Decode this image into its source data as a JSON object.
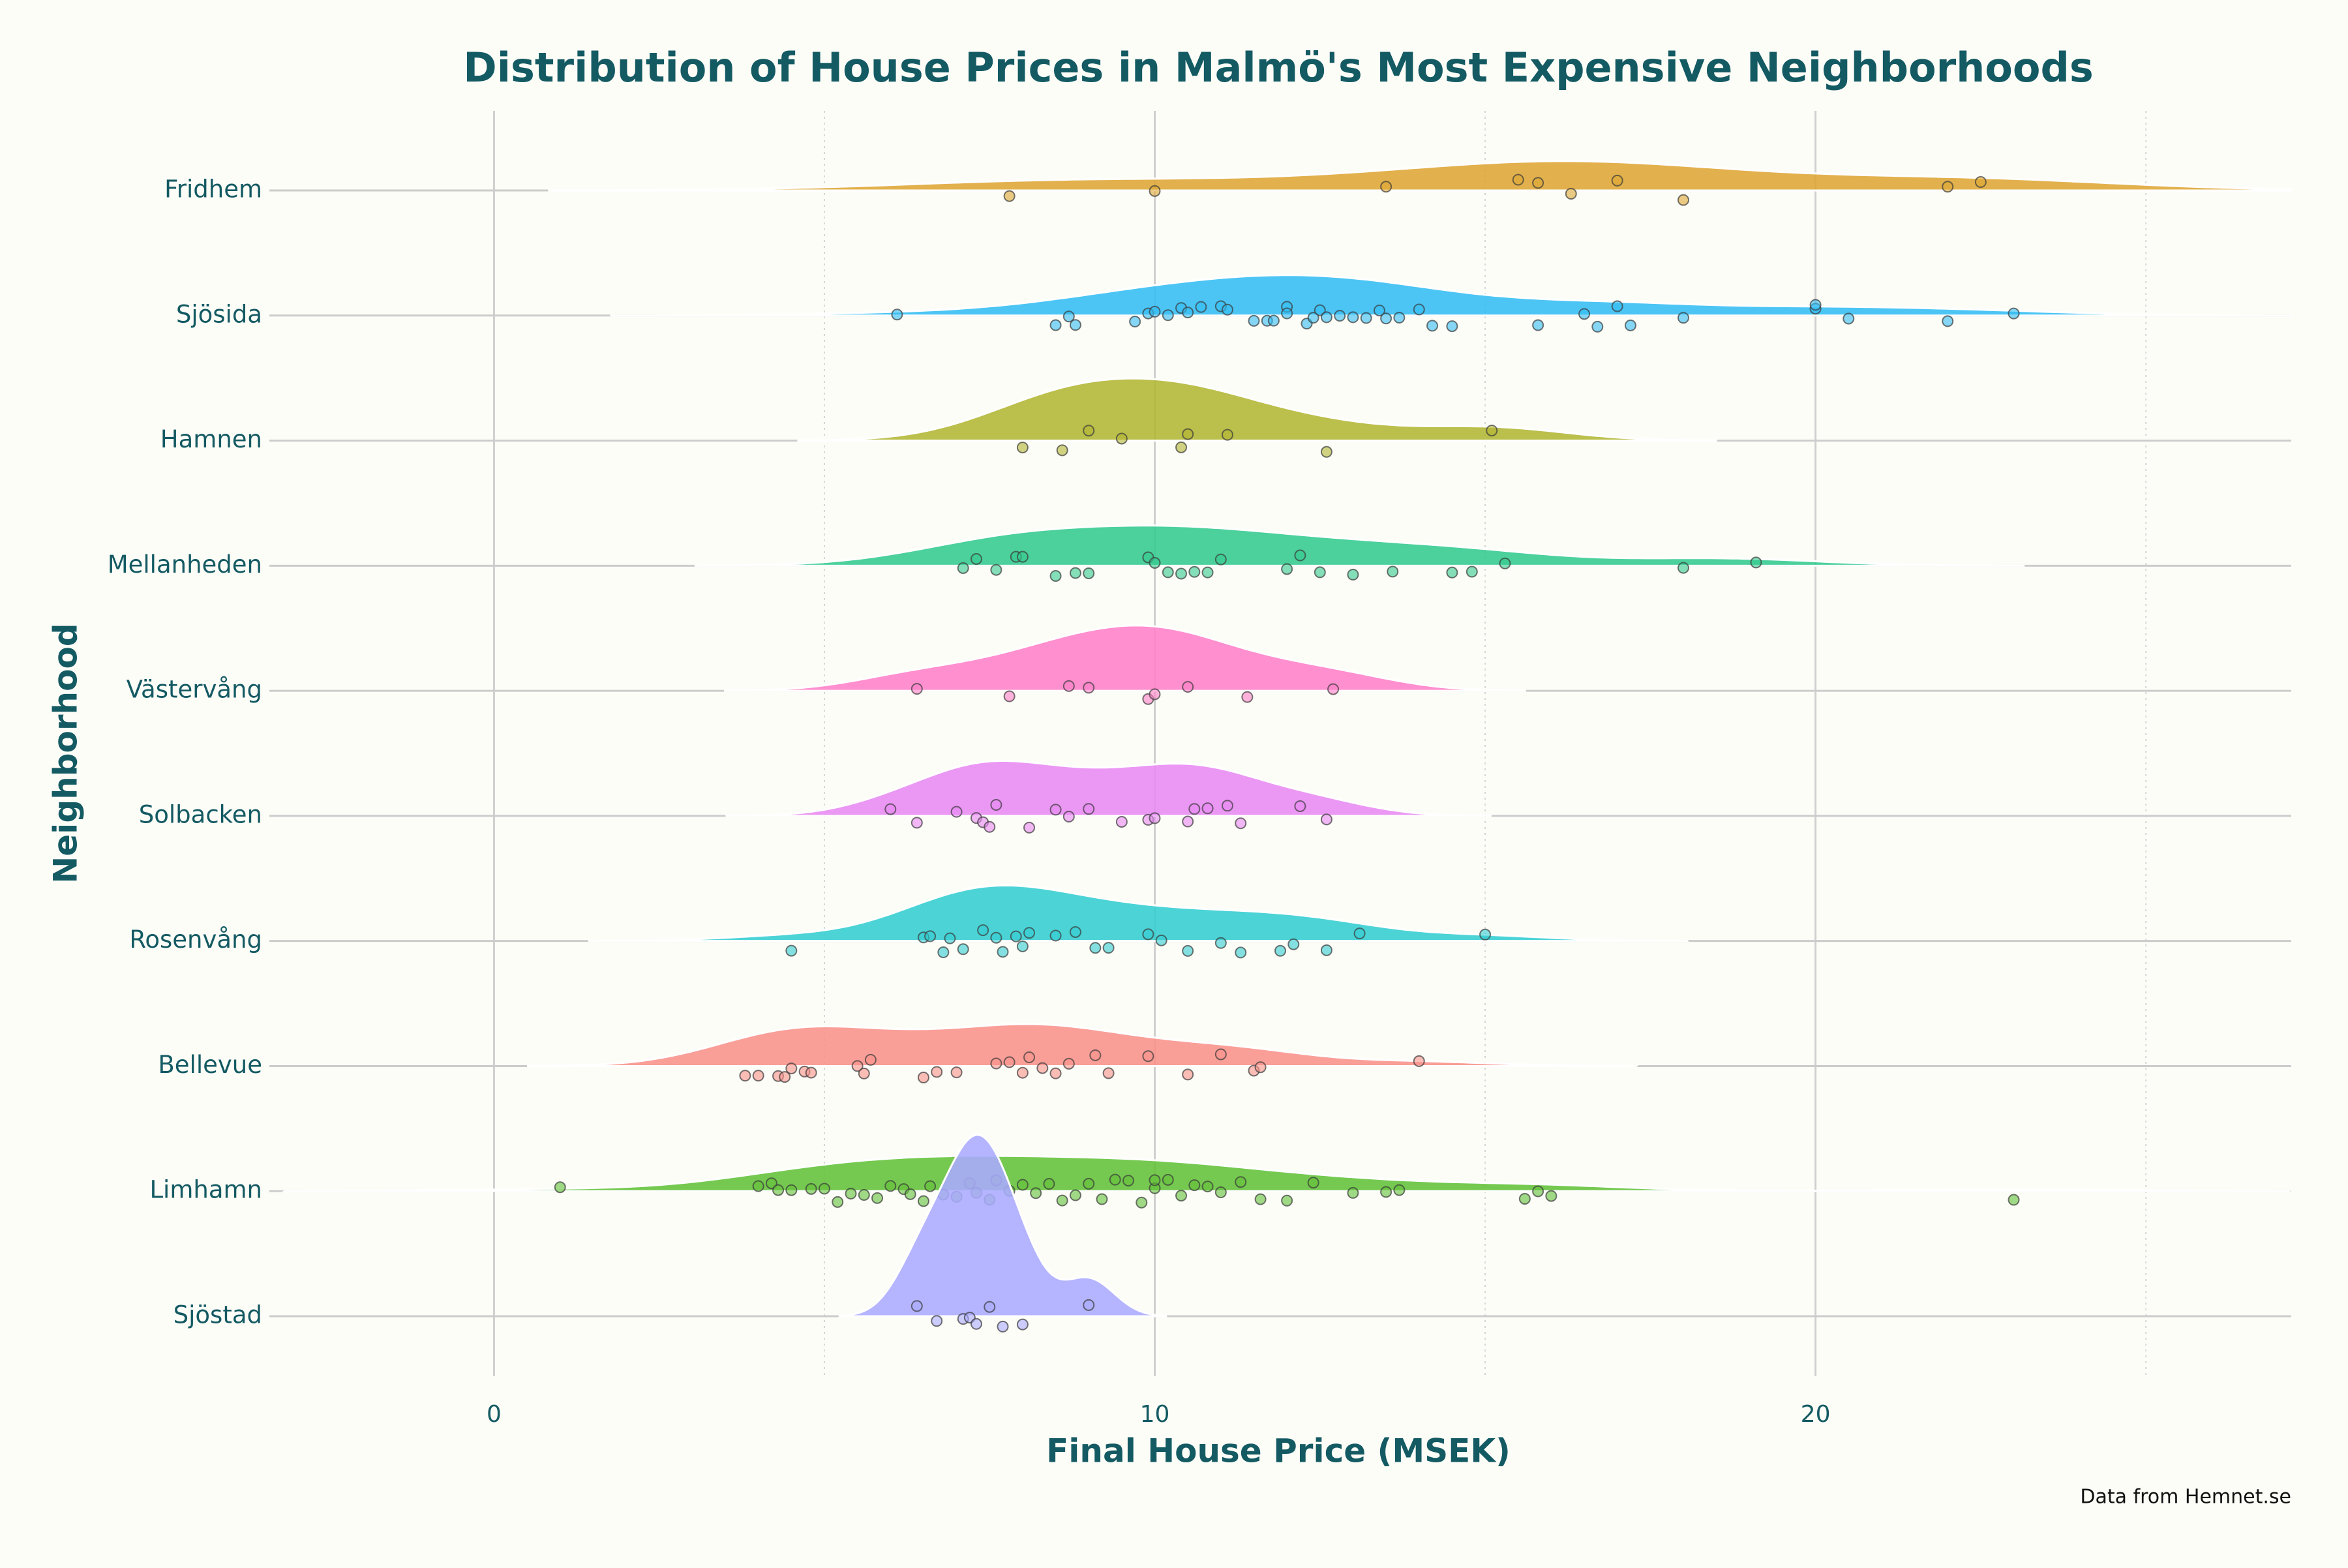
{
  "chart_data": {
    "type": "ridgeline",
    "title": "Distribution of House Prices in Malmö's Most Expensive Neighborhoods",
    "x_label": "Final House Price (MSEK)",
    "y_label": "Neighborhood",
    "caption": "Data from Hemnet.se",
    "xlim": [
      -3.4,
      27.2
    ],
    "xticks": [
      0,
      10,
      20
    ],
    "x_minor_ticks": [
      5,
      15,
      25
    ],
    "grid": true,
    "series": [
      {
        "name": "Fridhem",
        "color": "#dea634",
        "values": [
          7.8,
          10.0,
          13.5,
          15.5,
          15.8,
          16.3,
          17.0,
          18.0,
          22.0,
          22.5
        ]
      },
      {
        "name": "Sjösida",
        "color": "#33bdf2",
        "values": [
          6.1,
          8.5,
          8.7,
          8.8,
          9.7,
          9.9,
          10.0,
          10.2,
          10.4,
          10.5,
          10.7,
          11.0,
          11.1,
          11.5,
          11.7,
          11.8,
          12.0,
          12.0,
          12.3,
          12.4,
          12.5,
          12.6,
          12.8,
          13.0,
          13.2,
          13.4,
          13.5,
          13.7,
          14.0,
          14.2,
          14.5,
          15.8,
          16.5,
          16.7,
          17.0,
          17.2,
          18.0,
          20.0,
          20.0,
          20.5,
          22.0,
          23.0
        ]
      },
      {
        "name": "Hamnen",
        "color": "#b2b632",
        "values": [
          8.0,
          8.6,
          9.0,
          9.5,
          10.4,
          10.5,
          11.1,
          12.6,
          15.1
        ]
      },
      {
        "name": "Mellanheden",
        "color": "#33c98e",
        "values": [
          7.1,
          7.3,
          7.6,
          7.9,
          8.0,
          8.5,
          8.8,
          9.0,
          9.9,
          10.0,
          10.2,
          10.4,
          10.6,
          10.8,
          11.0,
          12.0,
          12.2,
          12.5,
          13.0,
          13.6,
          14.5,
          14.8,
          15.3,
          18.0,
          19.1
        ]
      },
      {
        "name": "Västervång",
        "color": "#ff80c8",
        "values": [
          6.4,
          7.8,
          8.7,
          9.0,
          9.9,
          10.0,
          10.5,
          11.4,
          12.7
        ]
      },
      {
        "name": "Solbacken",
        "color": "#e889f2",
        "values": [
          6.0,
          6.4,
          7.0,
          7.3,
          7.4,
          7.5,
          7.6,
          8.1,
          8.5,
          8.7,
          9.0,
          9.5,
          9.9,
          10.0,
          10.5,
          10.6,
          10.8,
          11.1,
          11.3,
          12.2,
          12.6
        ]
      },
      {
        "name": "Rosenvång",
        "color": "#33cdd0",
        "values": [
          4.5,
          6.5,
          6.6,
          6.8,
          6.9,
          7.1,
          7.4,
          7.6,
          7.7,
          7.9,
          8.0,
          8.1,
          8.5,
          8.8,
          9.1,
          9.3,
          9.9,
          10.1,
          10.5,
          11.0,
          11.3,
          11.9,
          12.1,
          12.6,
          13.1,
          15.0
        ]
      },
      {
        "name": "Bellevue",
        "color": "#f8928a",
        "values": [
          3.8,
          4.0,
          4.3,
          4.4,
          4.5,
          4.7,
          4.8,
          5.5,
          5.6,
          5.7,
          6.5,
          6.7,
          7.0,
          7.6,
          7.8,
          8.0,
          8.1,
          8.3,
          8.5,
          8.7,
          9.1,
          9.3,
          9.9,
          10.5,
          11.0,
          11.5,
          11.6,
          14.0
        ]
      },
      {
        "name": "Limhamn",
        "color": "#62c238",
        "values": [
          1.0,
          4.0,
          4.2,
          4.3,
          4.5,
          4.8,
          5.0,
          5.2,
          5.4,
          5.6,
          5.8,
          6.0,
          6.2,
          6.3,
          6.5,
          6.6,
          6.8,
          7.0,
          7.2,
          7.3,
          7.5,
          7.6,
          7.8,
          8.0,
          8.2,
          8.4,
          8.6,
          8.8,
          9.0,
          9.2,
          9.4,
          9.6,
          9.8,
          10.0,
          10.0,
          10.2,
          10.4,
          10.6,
          10.8,
          11.0,
          11.3,
          11.6,
          12.0,
          12.4,
          13.0,
          13.5,
          13.7,
          15.6,
          15.8,
          16.0,
          23.0
        ]
      },
      {
        "name": "Sjöstad",
        "color": "#aaaaff",
        "values": [
          6.4,
          6.7,
          7.1,
          7.2,
          7.3,
          7.5,
          7.7,
          8.0,
          9.0
        ]
      }
    ]
  }
}
